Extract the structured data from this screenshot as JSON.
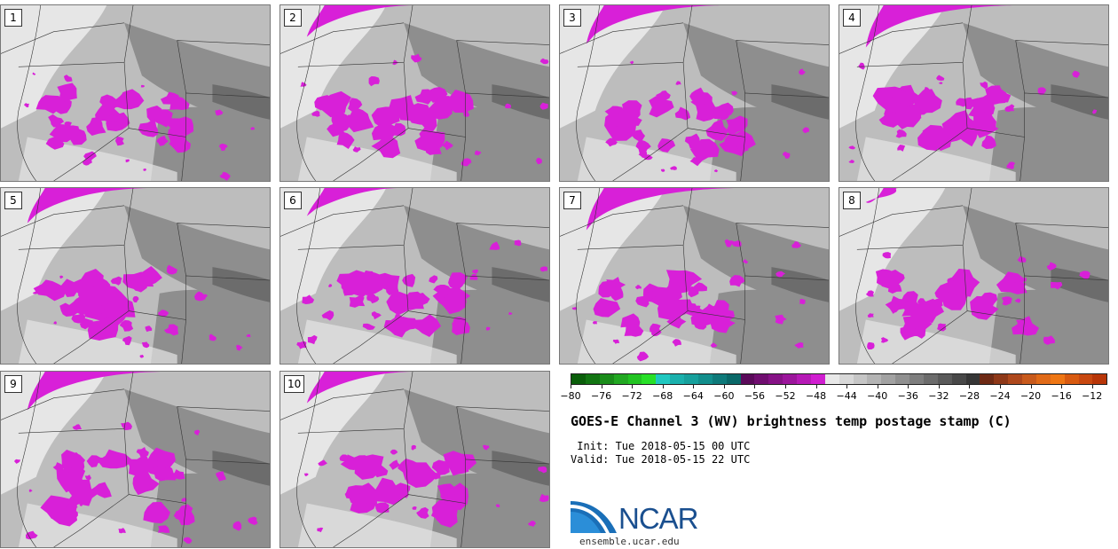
{
  "panels": [
    {
      "label": "1"
    },
    {
      "label": "2"
    },
    {
      "label": "3"
    },
    {
      "label": "4"
    },
    {
      "label": "5"
    },
    {
      "label": "6"
    },
    {
      "label": "7"
    },
    {
      "label": "8"
    },
    {
      "label": "9"
    },
    {
      "label": "10"
    }
  ],
  "colorbar": {
    "tick_labels": [
      "−80",
      "−76",
      "−72",
      "−68",
      "−64",
      "−60",
      "−56",
      "−52",
      "−48",
      "−44",
      "−40",
      "−36",
      "−32",
      "−28",
      "−24",
      "−20",
      "−16",
      "−12"
    ],
    "tick_values": [
      -80,
      -76,
      -72,
      -68,
      -64,
      -60,
      -56,
      -52,
      -48,
      -44,
      -40,
      -36,
      -32,
      -28,
      -24,
      -20,
      -16,
      -12
    ],
    "range": [
      -80,
      -10
    ],
    "colors": [
      "#0a5e0a",
      "#127512",
      "#1a8c1a",
      "#22a822",
      "#22c422",
      "#28e028",
      "#20c8c0",
      "#1ab0ac",
      "#16a09c",
      "#128e8c",
      "#0e7a7a",
      "#0a6868",
      "#5a0a5a",
      "#700e70",
      "#861286",
      "#9c169c",
      "#b61ab6",
      "#d01ed0",
      "#e8e8e8",
      "#d8d8d8",
      "#c6c6c6",
      "#b4b4b4",
      "#a2a2a2",
      "#909090",
      "#7e7e7e",
      "#6c6c6c",
      "#5a5a5a",
      "#484848",
      "#363636",
      "#6e2a14",
      "#8e3818",
      "#ae481c",
      "#c85a1c",
      "#e06a18",
      "#ee7614",
      "#d85a10",
      "#c84810",
      "#b83608"
    ]
  },
  "title": "GOES-E Channel 3 (WV) brightness temp postage stamp (C)",
  "init_text": " Init: Tue 2018-05-15 00 UTC",
  "valid_text": "Valid: Tue 2018-05-15 22 UTC",
  "logo_text": "NCAR",
  "logo_url": "ensemble.ucar.edu",
  "map_colors": {
    "cold_cloud": "#d820d8",
    "cold_cloud_dark": "#8a108a",
    "moist": "#e6e6e6",
    "mid": "#bdbdbd",
    "dry": "#8e8e8e",
    "very_dry": "#6c6c6c"
  }
}
